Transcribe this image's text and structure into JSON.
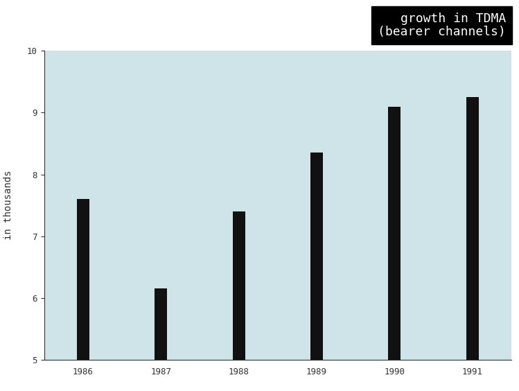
{
  "chart_data": {
    "type": "bar",
    "title": "growth in TDMA\n(bearer channels)",
    "y_label": "in thousands",
    "categories": [
      "1986",
      "1987",
      "1988",
      "1989",
      "1990",
      "1991"
    ],
    "values": [
      7.6,
      6.15,
      7.4,
      8.35,
      9.1,
      9.25
    ],
    "color": "#111111",
    "ylim": [
      5,
      10
    ],
    "yticks": [
      5,
      6,
      7,
      8,
      9,
      10
    ],
    "grid": false
  }
}
